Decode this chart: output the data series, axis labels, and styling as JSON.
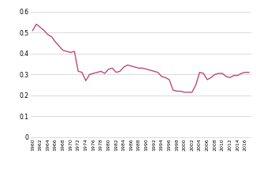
{
  "years": [
    1960,
    1961,
    1962,
    1963,
    1964,
    1965,
    1966,
    1967,
    1968,
    1969,
    1970,
    1971,
    1972,
    1973,
    1974,
    1975,
    1976,
    1977,
    1978,
    1979,
    1980,
    1981,
    1982,
    1983,
    1984,
    1985,
    1986,
    1987,
    1988,
    1989,
    1990,
    1991,
    1992,
    1993,
    1994,
    1995,
    1996,
    1997,
    1998,
    1999,
    2000,
    2001,
    2002,
    2003,
    2004,
    2005,
    2006,
    2007,
    2008,
    2009,
    2010,
    2011,
    2012,
    2013,
    2014,
    2015,
    2016,
    2017
  ],
  "values": [
    0.51,
    0.54,
    0.525,
    0.51,
    0.49,
    0.48,
    0.455,
    0.435,
    0.415,
    0.41,
    0.405,
    0.41,
    0.315,
    0.31,
    0.27,
    0.3,
    0.305,
    0.31,
    0.315,
    0.305,
    0.325,
    0.33,
    0.31,
    0.315,
    0.335,
    0.345,
    0.34,
    0.335,
    0.33,
    0.33,
    0.325,
    0.32,
    0.315,
    0.31,
    0.29,
    0.285,
    0.275,
    0.225,
    0.22,
    0.22,
    0.215,
    0.215,
    0.215,
    0.25,
    0.31,
    0.305,
    0.275,
    0.285,
    0.3,
    0.305,
    0.305,
    0.29,
    0.285,
    0.295,
    0.295,
    0.305,
    0.31,
    0.31
  ],
  "line_color": "#c0477a",
  "line_width": 1.0,
  "yticks": [
    0,
    0.1,
    0.2,
    0.3,
    0.4,
    0.5,
    0.6
  ],
  "ytick_labels": [
    "0",
    "0.1",
    "0.2",
    "0.3",
    "0.4",
    "0.5",
    "0.6"
  ],
  "xticks": [
    1960,
    1962,
    1964,
    1966,
    1968,
    1970,
    1972,
    1974,
    1976,
    1978,
    1980,
    1982,
    1984,
    1986,
    1988,
    1990,
    1992,
    1994,
    1996,
    1998,
    2000,
    2002,
    2004,
    2006,
    2008,
    2010,
    2012,
    2014,
    2016
  ],
  "ylim": [
    0,
    0.63
  ],
  "xlim": [
    1959.5,
    2017.5
  ],
  "grid_color": "#cccccc",
  "bg_color": "#ffffff",
  "tick_label_fontsize": 4.5,
  "ytick_label_fontsize": 5.5
}
